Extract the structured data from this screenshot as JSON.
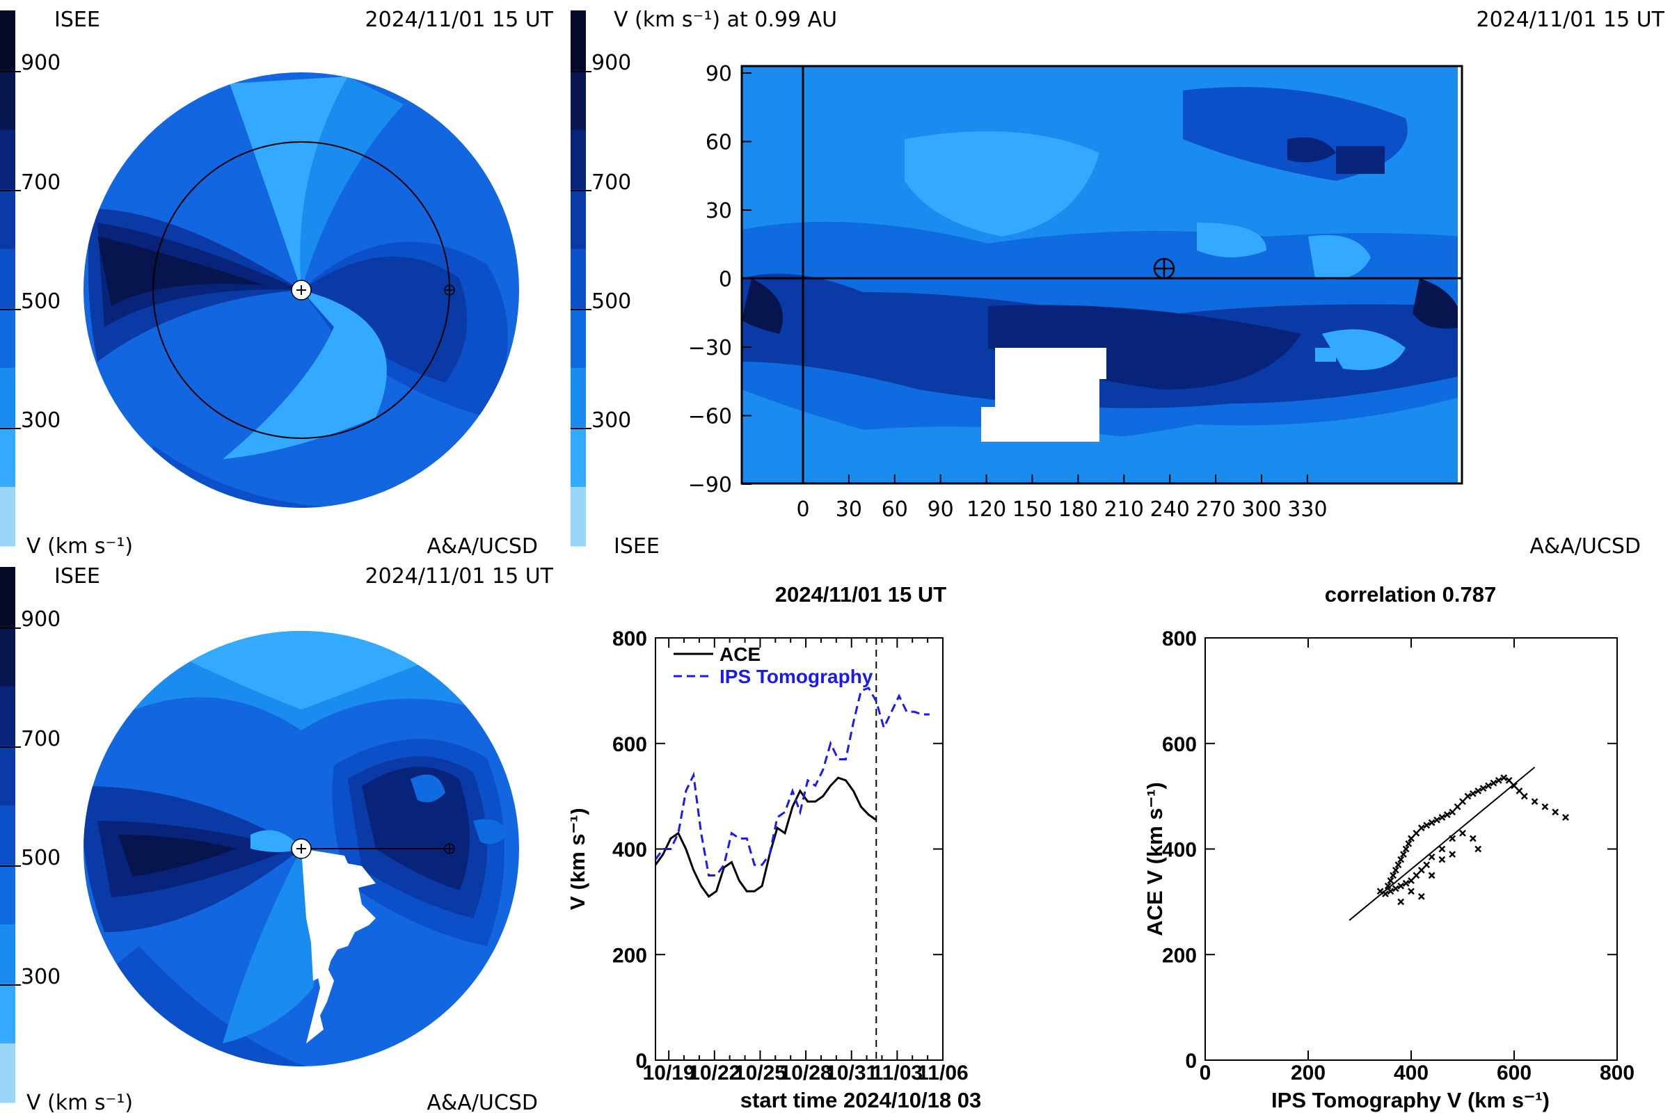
{
  "colorbar": {
    "ticks": [
      "900",
      "700",
      "500",
      "300"
    ],
    "unit_label": "V (km s⁻¹)",
    "colors": [
      "#99d6f8",
      "#33aaff",
      "#1a8cf0",
      "#0f6ce0",
      "#0b50c8",
      "#0a3aa6",
      "#08247a",
      "#06154d",
      "#040a28"
    ]
  },
  "panel_top_left": {
    "org": "ISEE",
    "timestamp": "2024/11/01 15 UT",
    "credit": "A&A/UCSD"
  },
  "panel_top_right": {
    "title": "V (km s⁻¹) at 0.99 AU",
    "timestamp": "2024/11/01 15 UT",
    "org": "ISEE",
    "credit": "A&A/UCSD",
    "x_ticks": [
      "0",
      "30",
      "60",
      "90",
      "120",
      "150",
      "180",
      "210",
      "240",
      "270",
      "300",
      "330"
    ],
    "y_ticks": [
      "90",
      "60",
      "30",
      "0",
      "−30",
      "−60",
      "−90"
    ]
  },
  "panel_bottom_left": {
    "org": "ISEE",
    "timestamp": "2024/11/01 15 UT",
    "credit": "A&A/UCSD"
  },
  "chart_data": [
    {
      "type": "line",
      "title": "2024/11/01 15 UT",
      "xlabel": "start time 2024/10/18 03",
      "ylabel": "V (km s⁻¹)",
      "x_tick_labels": [
        "10/19",
        "10/22",
        "10/25",
        "10/28",
        "10/31",
        "11/03",
        "11/06"
      ],
      "x_tick_days": [
        0.875,
        3.875,
        6.875,
        9.875,
        12.875,
        15.875,
        18.875
      ],
      "y_ticks": [
        0,
        200,
        400,
        600,
        800
      ],
      "xlim": [
        0,
        18.875
      ],
      "ylim": [
        0,
        800
      ],
      "now_marker_day": 14.5,
      "series": [
        {
          "name": "ACE",
          "color": "#000000",
          "dash": "solid",
          "x": [
            0.0,
            0.5,
            1.0,
            1.5,
            2.0,
            2.5,
            3.0,
            3.5,
            4.0,
            4.5,
            5.0,
            5.5,
            6.0,
            6.5,
            7.0,
            7.5,
            8.0,
            8.5,
            9.0,
            9.5,
            10.0,
            10.5,
            11.0,
            11.5,
            12.0,
            12.5,
            13.0,
            13.5,
            14.0,
            14.5
          ],
          "y": [
            370,
            390,
            420,
            430,
            400,
            360,
            330,
            310,
            320,
            365,
            375,
            340,
            320,
            320,
            330,
            390,
            440,
            430,
            480,
            510,
            490,
            490,
            500,
            520,
            535,
            530,
            510,
            480,
            465,
            455
          ]
        },
        {
          "name": "IPS Tomography",
          "color": "#1a1aee",
          "dash": "dashed",
          "x": [
            0.0,
            0.5,
            1.0,
            1.5,
            2.0,
            2.5,
            3.0,
            3.5,
            4.0,
            4.5,
            5.0,
            5.5,
            6.0,
            6.5,
            7.0,
            7.5,
            8.0,
            8.5,
            9.0,
            9.5,
            10.0,
            10.5,
            11.0,
            11.5,
            12.0,
            12.5,
            13.0,
            13.5,
            14.0,
            14.5,
            15.0,
            15.5,
            16.0,
            16.5,
            17.0,
            17.5,
            18.0
          ],
          "y": [
            380,
            400,
            400,
            430,
            510,
            540,
            430,
            350,
            350,
            370,
            430,
            420,
            420,
            370,
            370,
            390,
            460,
            470,
            510,
            470,
            530,
            520,
            550,
            600,
            570,
            570,
            640,
            700,
            705,
            680,
            630,
            660,
            690,
            660,
            660,
            655,
            655
          ]
        }
      ]
    },
    {
      "type": "scatter",
      "title": "correlation 0.787",
      "xlabel": "IPS Tomography V (km s⁻¹)",
      "ylabel": "ACE V (km s⁻¹)",
      "x_ticks": [
        0,
        200,
        400,
        600,
        800
      ],
      "y_ticks": [
        0,
        200,
        400,
        600,
        800
      ],
      "xlim": [
        0,
        800
      ],
      "ylim": [
        0,
        800
      ],
      "fit_line": {
        "x": [
          280,
          640
        ],
        "y": [
          265,
          555
        ]
      },
      "points": {
        "x": [
          340,
          355,
          360,
          365,
          370,
          375,
          380,
          385,
          390,
          395,
          400,
          410,
          420,
          430,
          440,
          450,
          460,
          470,
          480,
          490,
          500,
          510,
          520,
          530,
          540,
          550,
          560,
          570,
          580,
          590,
          600,
          610,
          620,
          640,
          660,
          680,
          700,
          350,
          360,
          370,
          380,
          390,
          400,
          410,
          420,
          430,
          440,
          460,
          480,
          500,
          520,
          530,
          380,
          400,
          420,
          440,
          460,
          480
        ],
        "y": [
          320,
          330,
          340,
          350,
          360,
          370,
          380,
          390,
          400,
          410,
          420,
          430,
          440,
          445,
          450,
          455,
          460,
          465,
          470,
          480,
          490,
          500,
          505,
          510,
          515,
          520,
          525,
          530,
          535,
          530,
          520,
          510,
          500,
          490,
          480,
          470,
          460,
          315,
          320,
          325,
          330,
          335,
          340,
          350,
          360,
          370,
          385,
          400,
          420,
          430,
          420,
          400,
          300,
          320,
          310,
          350,
          380,
          390
        ]
      }
    }
  ]
}
